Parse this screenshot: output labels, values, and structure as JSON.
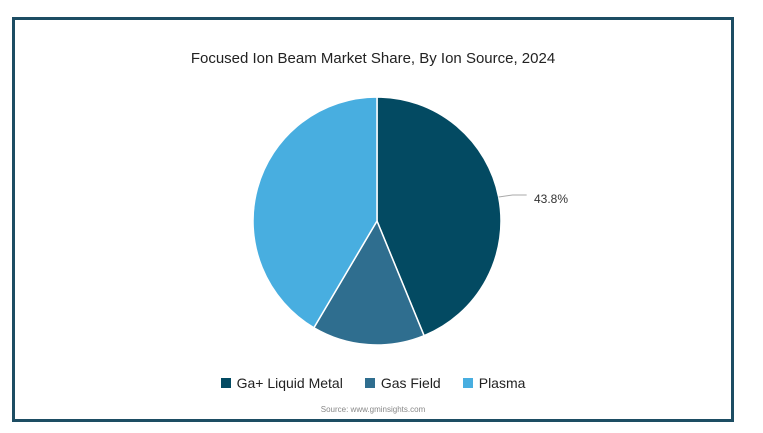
{
  "chart_data": {
    "type": "pie",
    "title": "Focused Ion Beam Market Share, By Ion Source, 2024",
    "slices": [
      {
        "name": "Ga+ Liquid Metal",
        "value": 43.8,
        "color": "#034a62"
      },
      {
        "name": "Gas Field",
        "value": 14.7,
        "color": "#2f6e8f"
      },
      {
        "name": "Plasma",
        "value": 41.5,
        "color": "#48aee0"
      }
    ],
    "data_labels": [
      "43.8%"
    ],
    "legend_position": "bottom"
  },
  "source": "Source: www.gminsights.com"
}
